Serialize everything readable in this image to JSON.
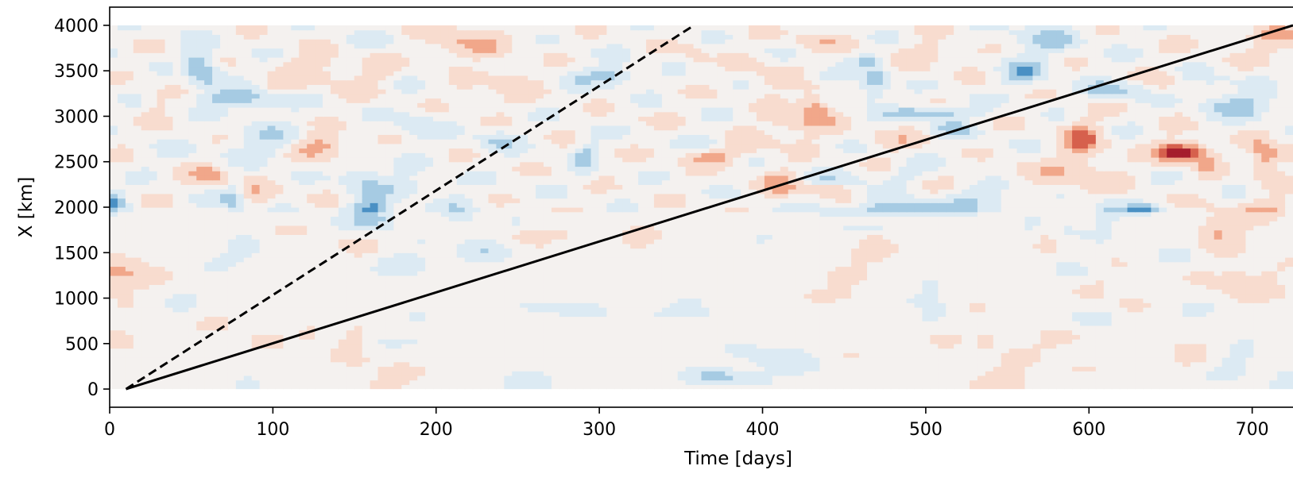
{
  "chart_data": {
    "type": "heatmap",
    "title": "",
    "xlabel": "Time [days]",
    "ylabel": "X [km]",
    "xlim": [
      0,
      725
    ],
    "ylim": [
      -200,
      4200
    ],
    "x_ticks": [
      0,
      100,
      200,
      300,
      400,
      500,
      600,
      700
    ],
    "y_ticks": [
      0,
      500,
      1000,
      1500,
      2000,
      2500,
      3000,
      3500,
      4000
    ],
    "field_extent": {
      "x": [
        0,
        725
      ],
      "y": [
        0,
        4000
      ]
    },
    "colormap": "RdBu_r",
    "colors": {
      "neg_strong": "#1f5fa6",
      "neg_mid": "#4a90c4",
      "neg_light": "#a6cbe3",
      "neg_faint": "#dceaf3",
      "neutral": "#f4f1ef",
      "pos_faint": "#f8dccf",
      "pos_light": "#f1a78a",
      "pos_mid": "#d6604d",
      "pos_strong": "#a51d2d"
    },
    "field_description_regions": [
      {
        "name": "lower region",
        "y": [
          0,
          1950
        ],
        "intensity": "weak"
      },
      {
        "name": "upper region",
        "y": [
          1950,
          4000
        ],
        "intensity": "strong"
      }
    ],
    "lines": [
      {
        "style": "solid",
        "color": "#000000",
        "x": [
          10,
          725
        ],
        "y": [
          0,
          4000
        ]
      },
      {
        "style": "dashed",
        "color": "#000000",
        "x": [
          10,
          358
        ],
        "y": [
          0,
          4000
        ]
      }
    ],
    "grid": false
  }
}
